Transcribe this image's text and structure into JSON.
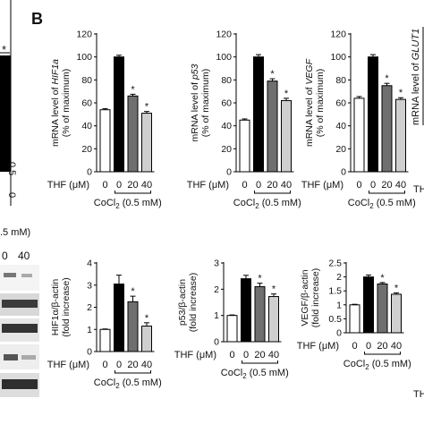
{
  "panel_label": "B",
  "blot_header": {
    "conc": ".5 mM)",
    "lanes": [
      "0",
      "40"
    ]
  },
  "left_axis": {
    "tick_5": "0.5",
    "tick_0": "0"
  },
  "conditions": {
    "thf_label": "THF (μM)",
    "thf_values": [
      "0",
      "0",
      "20",
      "40"
    ],
    "cocl2_label": "CoCl",
    "cocl2_sub": "2",
    "cocl2_unit": " (0.5 mM)"
  },
  "clipped_labels": {
    "mrna": "mRNA level of ",
    "glut1": "GLUT1",
    "thf_top": "TH",
    "thf_bottom": "TH"
  },
  "chart_data": [
    {
      "type": "bar",
      "id": "hif1a_mrna",
      "ylabel_prefix": "mRNA level of ",
      "ylabel_gene": "HIF1a",
      "ylabel_line2": "(% of maximum)",
      "ylim": [
        0,
        120
      ],
      "yticks": [
        0,
        20,
        40,
        60,
        80,
        100,
        120
      ],
      "categories": [
        "0",
        "0",
        "20",
        "40"
      ],
      "values": [
        54,
        100,
        66,
        51
      ],
      "errors": [
        1,
        1.5,
        1.5,
        1.5
      ],
      "significant": [
        false,
        false,
        true,
        true
      ],
      "colors": [
        "#ffffff",
        "#000000",
        "#6f6f6f",
        "#cfcfcf"
      ]
    },
    {
      "type": "bar",
      "id": "p53_mrna",
      "ylabel_prefix": "mRNA level of ",
      "ylabel_gene": "p53",
      "ylabel_line2": "(% of maximum)",
      "ylim": [
        0,
        120
      ],
      "yticks": [
        0,
        20,
        40,
        60,
        80,
        100,
        120
      ],
      "categories": [
        "0",
        "0",
        "20",
        "40"
      ],
      "values": [
        45,
        100,
        79,
        62
      ],
      "errors": [
        1,
        2,
        2,
        2
      ],
      "significant": [
        false,
        false,
        true,
        true
      ],
      "colors": [
        "#ffffff",
        "#000000",
        "#6f6f6f",
        "#cfcfcf"
      ]
    },
    {
      "type": "bar",
      "id": "vegf_mrna",
      "ylabel_prefix": "mRNA level of ",
      "ylabel_gene": "VEGF",
      "ylabel_line2": "(% of maximum)",
      "ylim": [
        0,
        120
      ],
      "yticks": [
        0,
        20,
        40,
        60,
        80,
        100,
        120
      ],
      "categories": [
        "0",
        "0",
        "20",
        "40"
      ],
      "values": [
        64,
        100,
        75,
        63
      ],
      "errors": [
        1.5,
        2,
        2,
        1.5
      ],
      "significant": [
        false,
        false,
        true,
        true
      ],
      "colors": [
        "#ffffff",
        "#000000",
        "#6f6f6f",
        "#cfcfcf"
      ]
    },
    {
      "type": "bar",
      "id": "hif1a_protein",
      "ylabel_line1": "HIF1α/β-actin",
      "ylabel_line2": "(fold increase)",
      "ylim": [
        0,
        4
      ],
      "yticks": [
        0,
        1,
        2,
        3,
        4
      ],
      "categories": [
        "0",
        "0",
        "20",
        "40"
      ],
      "values": [
        1.0,
        3.05,
        2.25,
        1.15
      ],
      "errors": [
        0.02,
        0.4,
        0.25,
        0.15
      ],
      "significant": [
        false,
        false,
        true,
        true
      ],
      "colors": [
        "#ffffff",
        "#000000",
        "#6f6f6f",
        "#cfcfcf"
      ]
    },
    {
      "type": "bar",
      "id": "p53_protein",
      "ylabel_line1": "p53/β-actin",
      "ylabel_line2": "(fold increase)",
      "ylim": [
        0,
        3
      ],
      "yticks": [
        0,
        1,
        2,
        3
      ],
      "categories": [
        "0",
        "0",
        "20",
        "40"
      ],
      "values": [
        1.0,
        2.4,
        2.1,
        1.72
      ],
      "errors": [
        0.02,
        0.13,
        0.13,
        0.1
      ],
      "significant": [
        false,
        false,
        true,
        true
      ],
      "colors": [
        "#ffffff",
        "#000000",
        "#6f6f6f",
        "#cfcfcf"
      ]
    },
    {
      "type": "bar",
      "id": "vegf_protein",
      "ylabel_line1": "VEGF/β-actin",
      "ylabel_line2": "(fold increase)",
      "ylim": [
        0,
        2.5
      ],
      "yticks": [
        0,
        0.5,
        1,
        1.5,
        2,
        2.5
      ],
      "categories": [
        "0",
        "0",
        "20",
        "40"
      ],
      "values": [
        1.0,
        2.0,
        1.75,
        1.38
      ],
      "errors": [
        0.02,
        0.07,
        0.05,
        0.05
      ],
      "significant": [
        false,
        false,
        true,
        true
      ],
      "colors": [
        "#ffffff",
        "#000000",
        "#6f6f6f",
        "#cfcfcf"
      ]
    }
  ]
}
